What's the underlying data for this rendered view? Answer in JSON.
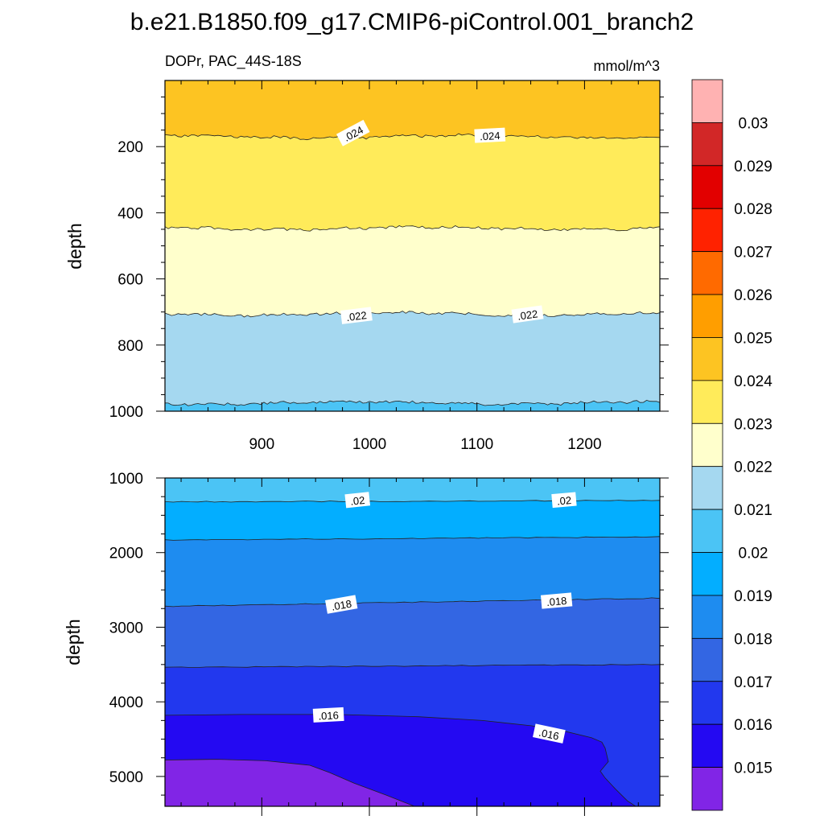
{
  "title": "b.e21.B1850.f09_g17.CMIP6-piControl.001_branch2",
  "subtitle_left": "DOPr, PAC_44S-18S",
  "subtitle_right": "mmol/m^3",
  "colors": {
    "c0": "#8125e6",
    "c1": "#2409f2",
    "c2": "#2238ee",
    "c3": "#3366e3",
    "c4": "#1e8cf0",
    "c5": "#03aeff",
    "c6": "#4bc4f5",
    "c7": "#a5d8f0",
    "c8": "#ffffcc",
    "c9": "#ffeb5a",
    "c10": "#fdc422",
    "c11": "#ff9e00",
    "c12": "#ff6a00",
    "c13": "#ff2200",
    "c14": "#e20000",
    "c15": "#d22727",
    "c16": "#ffb2b2"
  },
  "chart_data": [
    {
      "type": "contour",
      "panel": "upper",
      "xlabel": "",
      "ylabel": "depth",
      "xlim": [
        810,
        1270
      ],
      "ylim": [
        1000,
        0
      ],
      "x_ticks": [
        "900",
        "1000",
        "1100",
        "1200"
      ],
      "y_ticks": [
        "200",
        "400",
        "600",
        "800",
        "1000"
      ],
      "contour_levels": [
        {
          "value": 0.024,
          "depth": 170
        },
        {
          "value": 0.023,
          "depth": 447
        },
        {
          "value": 0.022,
          "depth": 706
        },
        {
          "value": 0.021,
          "depth": 975
        }
      ],
      "contour_labels": [
        {
          "text": ".024",
          "x": 985,
          "depth": 160
        },
        {
          "text": ".024",
          "x": 1112,
          "depth": 167
        },
        {
          "text": ".022",
          "x": 988,
          "depth": 712
        },
        {
          "text": ".022",
          "x": 1147,
          "depth": 708
        }
      ]
    },
    {
      "type": "contour",
      "panel": "lower",
      "xlabel": "",
      "ylabel": "depth",
      "xlim": [
        810,
        1270
      ],
      "ylim": [
        5400,
        1000
      ],
      "x_ticks": [],
      "y_ticks": [
        "1000",
        "2000",
        "3000",
        "4000",
        "5000"
      ],
      "contour_levels": [
        {
          "value": 0.02,
          "depth": 1320
        },
        {
          "value": 0.019,
          "depth": 1830
        },
        {
          "value": 0.018,
          "depth": 2680
        },
        {
          "value": 0.017,
          "depth": 3530
        },
        {
          "value": 0.016,
          "depth": 4180
        },
        {
          "value": 0.015,
          "depth": 4780
        }
      ],
      "contour_labels": [
        {
          "text": ".02",
          "x": 989,
          "depth": 1300
        },
        {
          "text": ".02",
          "x": 1181,
          "depth": 1300
        },
        {
          "text": ".018",
          "x": 974,
          "depth": 2700
        },
        {
          "text": ".018",
          "x": 1174,
          "depth": 2650
        },
        {
          "text": ".016",
          "x": 962,
          "depth": 4180
        },
        {
          "text": ".016",
          "x": 1167,
          "depth": 4430
        }
      ]
    }
  ],
  "colorbar": {
    "labels": [
      "0.03",
      "0.029",
      "0.028",
      "0.027",
      "0.026",
      "0.025",
      "0.024",
      "0.023",
      "0.022",
      "0.021",
      "0.02",
      "0.019",
      "0.018",
      "0.017",
      "0.016",
      "0.015"
    ]
  }
}
